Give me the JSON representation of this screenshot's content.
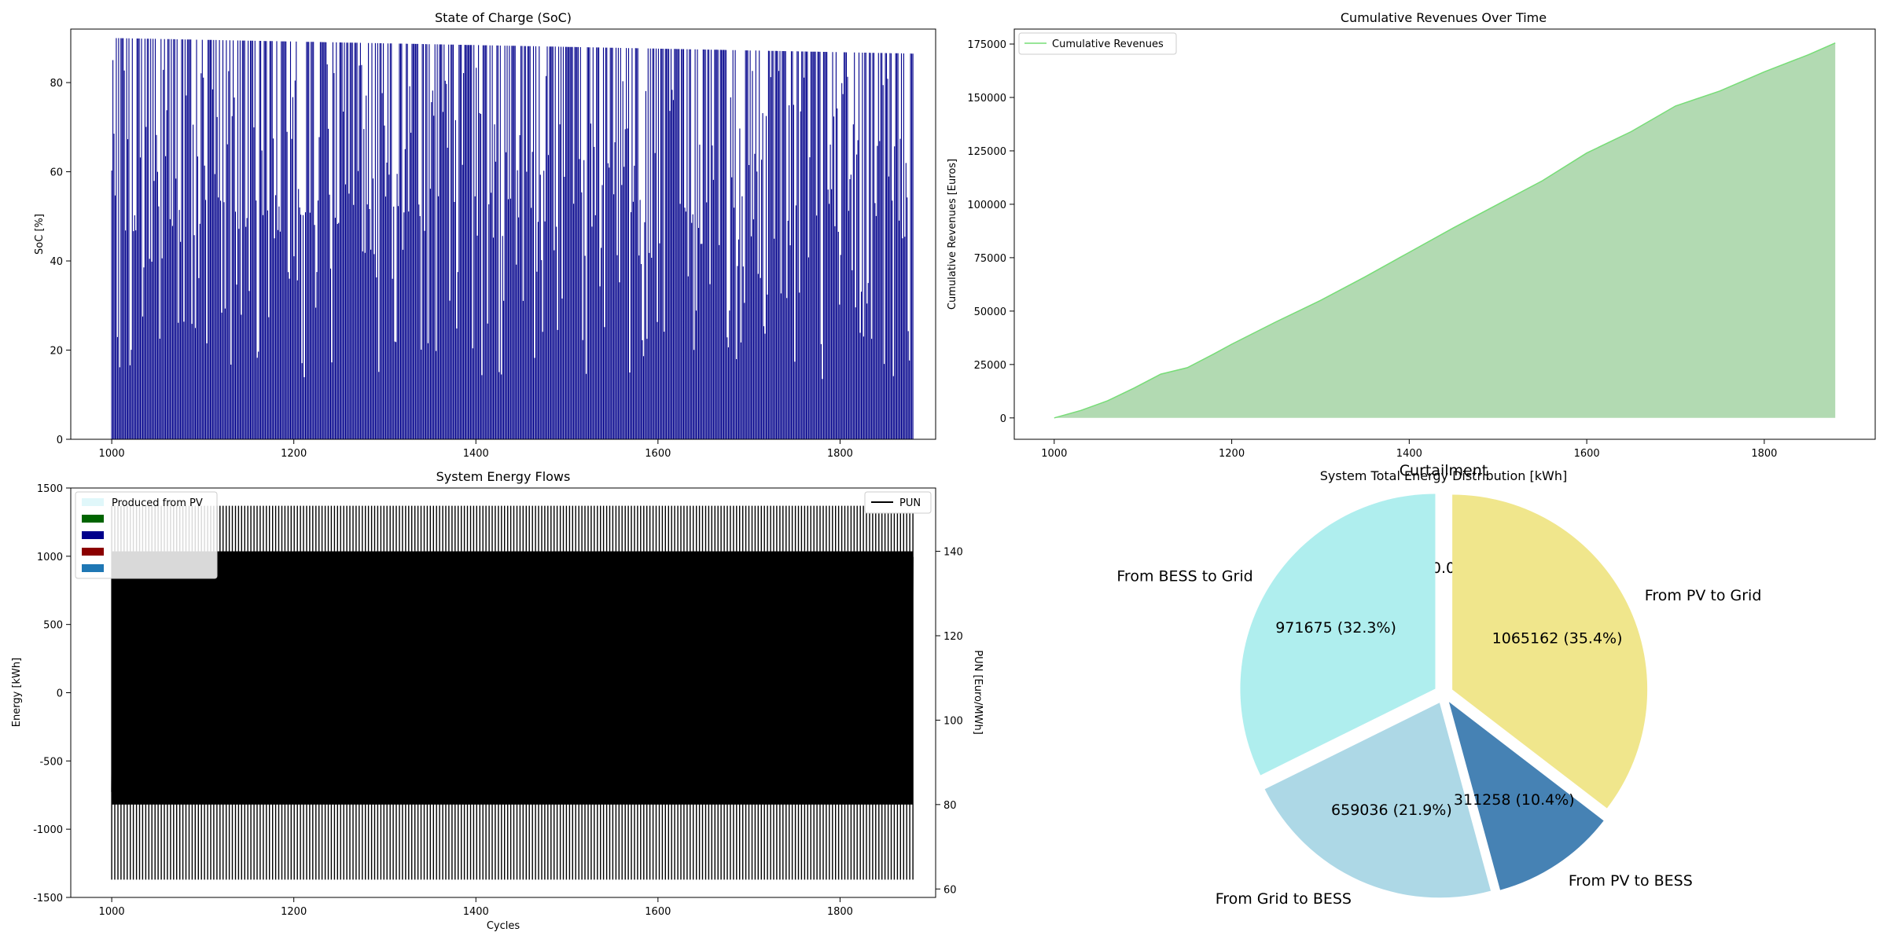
{
  "chart_data": [
    {
      "id": "soc",
      "type": "bar",
      "title": "State of Charge (SoC)",
      "xlabel": "",
      "ylabel": "SoC [%]",
      "xlim": [
        955,
        1905
      ],
      "ylim": [
        0,
        92
      ],
      "xticks": [
        1000,
        1200,
        1400,
        1600,
        1800
      ],
      "yticks": [
        0,
        20,
        40,
        60,
        80
      ],
      "x_range": [
        1000,
        1880
      ],
      "max_soc_start": 90,
      "max_soc_end": 86.5,
      "color": "#00008b",
      "grid": false
    },
    {
      "id": "revenues",
      "type": "area",
      "title": "Cumulative Revenues Over Time",
      "xlabel": "",
      "ylabel": "Cumulative Revenues [Euros]",
      "xlim": [
        955,
        1925
      ],
      "ylim": [
        -10000,
        182000
      ],
      "xticks": [
        1000,
        1200,
        1400,
        1600,
        1800
      ],
      "yticks": [
        0,
        25000,
        50000,
        75000,
        100000,
        125000,
        150000,
        175000
      ],
      "legend": [
        "Cumulative Revenues"
      ],
      "legend_position": "upper-left",
      "line_color": "#77dd77",
      "fill_color": "#b2dab2",
      "x": [
        1000,
        1030,
        1060,
        1090,
        1120,
        1150,
        1180,
        1200,
        1250,
        1300,
        1350,
        1400,
        1450,
        1500,
        1550,
        1600,
        1650,
        1700,
        1750,
        1800,
        1850,
        1880
      ],
      "y": [
        0,
        3500,
        8000,
        14000,
        20500,
        23500,
        30000,
        34500,
        45000,
        55000,
        66000,
        77500,
        89000,
        100000,
        111000,
        124000,
        134000,
        146000,
        153000,
        162000,
        170000,
        175500
      ],
      "grid": false
    },
    {
      "id": "flows",
      "type": "bar",
      "title": "System Energy Flows",
      "xlabel": "Cycles",
      "ylabel": "Energy [kWh]",
      "ylabel_right": "PUN [Euro/MWh]",
      "xlim": [
        955,
        1905
      ],
      "ylim": [
        -1500,
        1500
      ],
      "ylim_right": [
        58,
        155
      ],
      "xticks": [
        1000,
        1200,
        1400,
        1600,
        1800
      ],
      "yticks": [
        -1500,
        -1000,
        -500,
        0,
        500,
        1000,
        1500
      ],
      "yticks_right": [
        60,
        80,
        100,
        120,
        140
      ],
      "x_range": [
        1000,
        1880
      ],
      "energy_max": 1370,
      "energy_min": -1370,
      "pun_max": 140,
      "pun_min": 80,
      "legend": [
        "Produced from PV",
        "",
        "",
        "",
        ""
      ],
      "legend_colors": [
        "#e0f7fa",
        "#006400",
        "#00008b",
        "#8b0000",
        "#1f77b4"
      ],
      "legend_position": "upper-left",
      "legend_right": [
        "PUN"
      ],
      "legend_right_position": "upper-right",
      "grid": false
    },
    {
      "id": "pie",
      "type": "pie",
      "title": "System Total Energy Distribution [kWh]",
      "labels": [
        "Curtailment",
        "From BESS to Grid",
        "From Grid to BESS",
        "From PV to BESS",
        "From PV to Grid"
      ],
      "values": [
        0,
        971675,
        659036,
        311258,
        1065162
      ],
      "value_labels": [
        "0 (0.0%)",
        "971675 (32.3%)",
        "659036 (21.9%)",
        "311258 (10.4%)",
        "1065162 (35.4%)"
      ],
      "colors": [
        "#ff6347",
        "#afeeee",
        "#add8e6",
        "#4682b4",
        "#f0e68c"
      ]
    }
  ]
}
